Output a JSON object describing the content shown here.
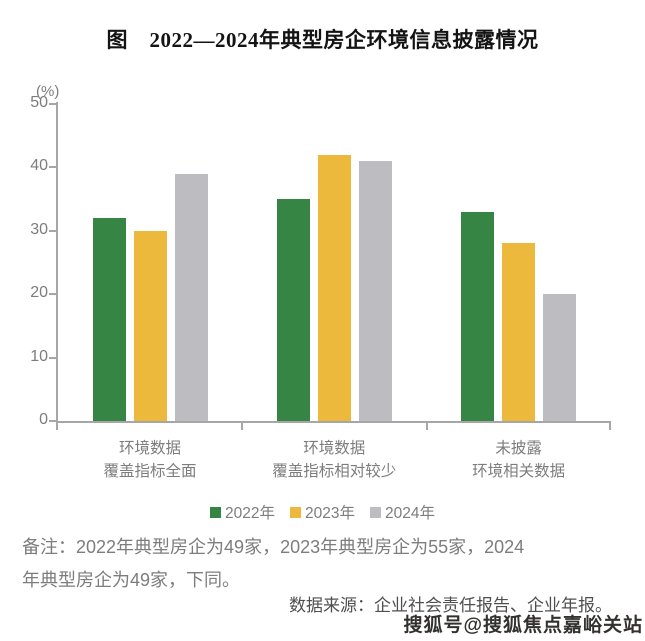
{
  "title": "图　2022—2024年典型房企环境信息披露情况",
  "chart_data": {
    "type": "bar",
    "unit_label": "(%)",
    "categories": [
      [
        "环境数据",
        "覆盖指标全面"
      ],
      [
        "环境数据",
        "覆盖指标相对较少"
      ],
      [
        "未披露",
        "环境相关数据"
      ]
    ],
    "series": [
      {
        "name": "2022年",
        "color": "#378544",
        "values": [
          32,
          35,
          33
        ]
      },
      {
        "name": "2023年",
        "color": "#EDB93C",
        "values": [
          30,
          42,
          28
        ]
      },
      {
        "name": "2024年",
        "color": "#BCBCC1",
        "values": [
          39,
          41,
          20
        ]
      }
    ],
    "ylim": [
      0,
      50
    ],
    "yticks": [
      0,
      10,
      20,
      30,
      40,
      50
    ],
    "grid": false,
    "legend_position": "bottom",
    "colors": {
      "axis": "#a6a6a6",
      "tick_text": "#7d7d7d"
    }
  },
  "note": {
    "line1": "备注：2022年典型房企为49家，2023年典型房企为55家，2024",
    "line2": "年典型房企为49家，下同。"
  },
  "source": "数据来源：企业社会责任报告、企业年报。",
  "watermark": "搜狐号@搜狐焦点嘉峪关站"
}
